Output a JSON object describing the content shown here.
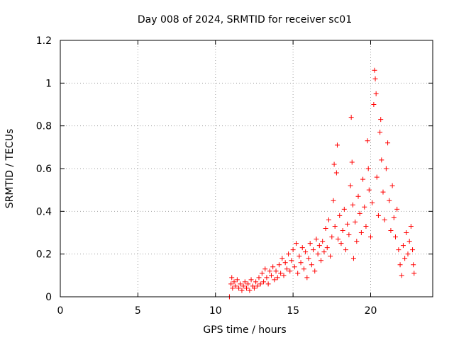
{
  "chart_data": {
    "type": "scatter",
    "title": "Day 008 of 2024, SRMTID for receiver sc01",
    "xlabel": "GPS time / hours",
    "ylabel": "SRMTID / TECUs",
    "xlim": [
      0,
      24
    ],
    "ylim": [
      0,
      1.2
    ],
    "xticks": [
      0,
      5,
      10,
      15,
      20
    ],
    "xtick_labels": [
      "0",
      "5",
      "10",
      "15",
      "20"
    ],
    "yticks": [
      0,
      0.2,
      0.4,
      0.6,
      0.8,
      1.0,
      1.2
    ],
    "ytick_labels": [
      "0",
      "0.2",
      "0.4",
      "0.6",
      "0.8",
      "1",
      "1.2"
    ],
    "grid": true,
    "marker": "plus",
    "color": "#ff0000",
    "series": [
      {
        "name": "sc01",
        "points": [
          [
            10.9,
            0.0
          ],
          [
            11.0,
            0.06
          ],
          [
            11.05,
            0.09
          ],
          [
            11.1,
            0.04
          ],
          [
            11.2,
            0.07
          ],
          [
            11.3,
            0.05
          ],
          [
            11.4,
            0.08
          ],
          [
            11.5,
            0.04
          ],
          [
            11.6,
            0.06
          ],
          [
            11.7,
            0.03
          ],
          [
            11.8,
            0.05
          ],
          [
            11.9,
            0.07
          ],
          [
            12.0,
            0.04
          ],
          [
            12.1,
            0.06
          ],
          [
            12.2,
            0.03
          ],
          [
            12.3,
            0.08
          ],
          [
            12.4,
            0.05
          ],
          [
            12.5,
            0.04
          ],
          [
            12.6,
            0.07
          ],
          [
            12.7,
            0.05
          ],
          [
            12.8,
            0.09
          ],
          [
            12.9,
            0.06
          ],
          [
            13.0,
            0.11
          ],
          [
            13.1,
            0.07
          ],
          [
            13.2,
            0.13
          ],
          [
            13.3,
            0.09
          ],
          [
            13.4,
            0.06
          ],
          [
            13.5,
            0.12
          ],
          [
            13.6,
            0.1
          ],
          [
            13.7,
            0.14
          ],
          [
            13.8,
            0.08
          ],
          [
            13.9,
            0.12
          ],
          [
            14.0,
            0.09
          ],
          [
            14.1,
            0.15
          ],
          [
            14.2,
            0.11
          ],
          [
            14.3,
            0.18
          ],
          [
            14.4,
            0.1
          ],
          [
            14.5,
            0.16
          ],
          [
            14.6,
            0.13
          ],
          [
            14.7,
            0.2
          ],
          [
            14.8,
            0.12
          ],
          [
            14.9,
            0.17
          ],
          [
            15.0,
            0.22
          ],
          [
            15.1,
            0.14
          ],
          [
            15.2,
            0.25
          ],
          [
            15.3,
            0.11
          ],
          [
            15.4,
            0.19
          ],
          [
            15.5,
            0.16
          ],
          [
            15.6,
            0.23
          ],
          [
            15.7,
            0.13
          ],
          [
            15.8,
            0.21
          ],
          [
            15.9,
            0.09
          ],
          [
            16.0,
            0.18
          ],
          [
            16.1,
            0.25
          ],
          [
            16.2,
            0.15
          ],
          [
            16.3,
            0.22
          ],
          [
            16.4,
            0.12
          ],
          [
            16.5,
            0.27
          ],
          [
            16.6,
            0.2
          ],
          [
            16.7,
            0.24
          ],
          [
            16.8,
            0.17
          ],
          [
            16.9,
            0.26
          ],
          [
            17.0,
            0.21
          ],
          [
            17.1,
            0.32
          ],
          [
            17.2,
            0.23
          ],
          [
            17.3,
            0.36
          ],
          [
            17.4,
            0.19
          ],
          [
            17.5,
            0.28
          ],
          [
            17.6,
            0.45
          ],
          [
            17.65,
            0.62
          ],
          [
            17.7,
            0.33
          ],
          [
            17.8,
            0.58
          ],
          [
            17.85,
            0.71
          ],
          [
            17.9,
            0.27
          ],
          [
            18.0,
            0.38
          ],
          [
            18.1,
            0.25
          ],
          [
            18.2,
            0.31
          ],
          [
            18.3,
            0.41
          ],
          [
            18.4,
            0.22
          ],
          [
            18.5,
            0.34
          ],
          [
            18.6,
            0.29
          ],
          [
            18.7,
            0.52
          ],
          [
            18.75,
            0.84
          ],
          [
            18.8,
            0.63
          ],
          [
            18.85,
            0.43
          ],
          [
            18.9,
            0.18
          ],
          [
            19.0,
            0.35
          ],
          [
            19.1,
            0.26
          ],
          [
            19.2,
            0.47
          ],
          [
            19.3,
            0.39
          ],
          [
            19.4,
            0.3
          ],
          [
            19.5,
            0.55
          ],
          [
            19.6,
            0.42
          ],
          [
            19.7,
            0.33
          ],
          [
            19.8,
            0.73
          ],
          [
            19.85,
            0.6
          ],
          [
            19.9,
            0.5
          ],
          [
            20.0,
            0.28
          ],
          [
            20.1,
            0.44
          ],
          [
            20.2,
            0.9
          ],
          [
            20.25,
            1.06
          ],
          [
            20.3,
            1.02
          ],
          [
            20.35,
            0.95
          ],
          [
            20.4,
            0.56
          ],
          [
            20.5,
            0.38
          ],
          [
            20.6,
            0.77
          ],
          [
            20.65,
            0.83
          ],
          [
            20.7,
            0.64
          ],
          [
            20.8,
            0.49
          ],
          [
            20.9,
            0.36
          ],
          [
            21.0,
            0.6
          ],
          [
            21.1,
            0.72
          ],
          [
            21.2,
            0.45
          ],
          [
            21.3,
            0.31
          ],
          [
            21.4,
            0.52
          ],
          [
            21.5,
            0.37
          ],
          [
            21.6,
            0.28
          ],
          [
            21.7,
            0.41
          ],
          [
            21.8,
            0.22
          ],
          [
            21.9,
            0.15
          ],
          [
            22.0,
            0.1
          ],
          [
            22.1,
            0.24
          ],
          [
            22.2,
            0.18
          ],
          [
            22.3,
            0.3
          ],
          [
            22.4,
            0.2
          ],
          [
            22.5,
            0.26
          ],
          [
            22.6,
            0.33
          ],
          [
            22.7,
            0.22
          ],
          [
            22.75,
            0.15
          ],
          [
            22.8,
            0.11
          ]
        ]
      }
    ]
  }
}
